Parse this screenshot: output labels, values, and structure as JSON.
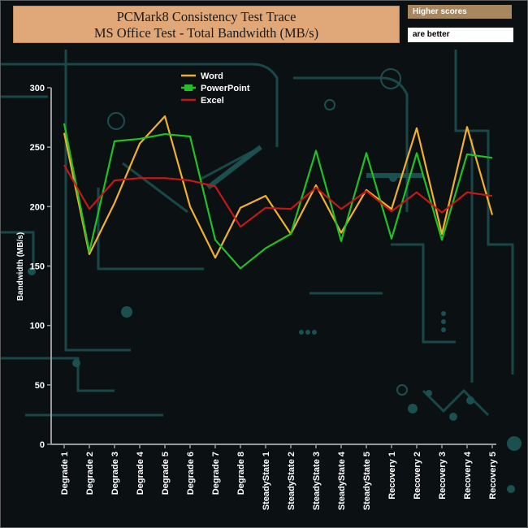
{
  "header": {
    "title_line1": "PCMark8 Consistency Test Trace",
    "title_line2": "MS Office Test - Total Bandwidth (MB/s)",
    "note_top": "Higher scores",
    "note_bottom": "are better"
  },
  "colors": {
    "word": "#f0b030",
    "powerpoint": "#22c028",
    "excel": "#c41818",
    "axis": "#9a9a9a",
    "art": "#1a4a4a"
  },
  "chart_data": {
    "type": "line",
    "title": "PCMark8 Consistency Test Trace - MS Office Test - Total Bandwidth (MB/s)",
    "ylabel": "Bandwidth (MB/s)",
    "xlabel": "",
    "ylim": [
      0,
      300
    ],
    "yticks": [
      0,
      50,
      100,
      150,
      200,
      250,
      300
    ],
    "legend_position": "top-center",
    "categories": [
      "Degrade 1",
      "Degrade 2",
      "Degrade 3",
      "Degrade 4",
      "Degrade 5",
      "Degrade 6",
      "Degrade 7",
      "Degrade 8",
      "SteadyState 1",
      "SteadyState 2",
      "SteadyState 3",
      "SteadyState 4",
      "SteadyState 5",
      "Recovery 1",
      "Recovery 2",
      "Recovery 3",
      "Recovery 4",
      "Recovery 5"
    ],
    "series": [
      {
        "name": "Word",
        "color": "#f0b030",
        "values": [
          262,
          160,
          203,
          253,
          276,
          200,
          157,
          199,
          209,
          177,
          218,
          178,
          214,
          198,
          266,
          177,
          267,
          193
        ]
      },
      {
        "name": "PowerPoint",
        "color": "#22c028",
        "values": [
          270,
          162,
          255,
          257,
          261,
          259,
          172,
          148,
          165,
          177,
          247,
          171,
          245,
          173,
          245,
          172,
          244,
          241
        ]
      },
      {
        "name": "Excel",
        "color": "#c41818",
        "values": [
          235,
          198,
          222,
          224,
          224,
          222,
          217,
          183,
          199,
          198,
          216,
          198,
          213,
          196,
          212,
          195,
          212,
          209
        ]
      }
    ]
  }
}
